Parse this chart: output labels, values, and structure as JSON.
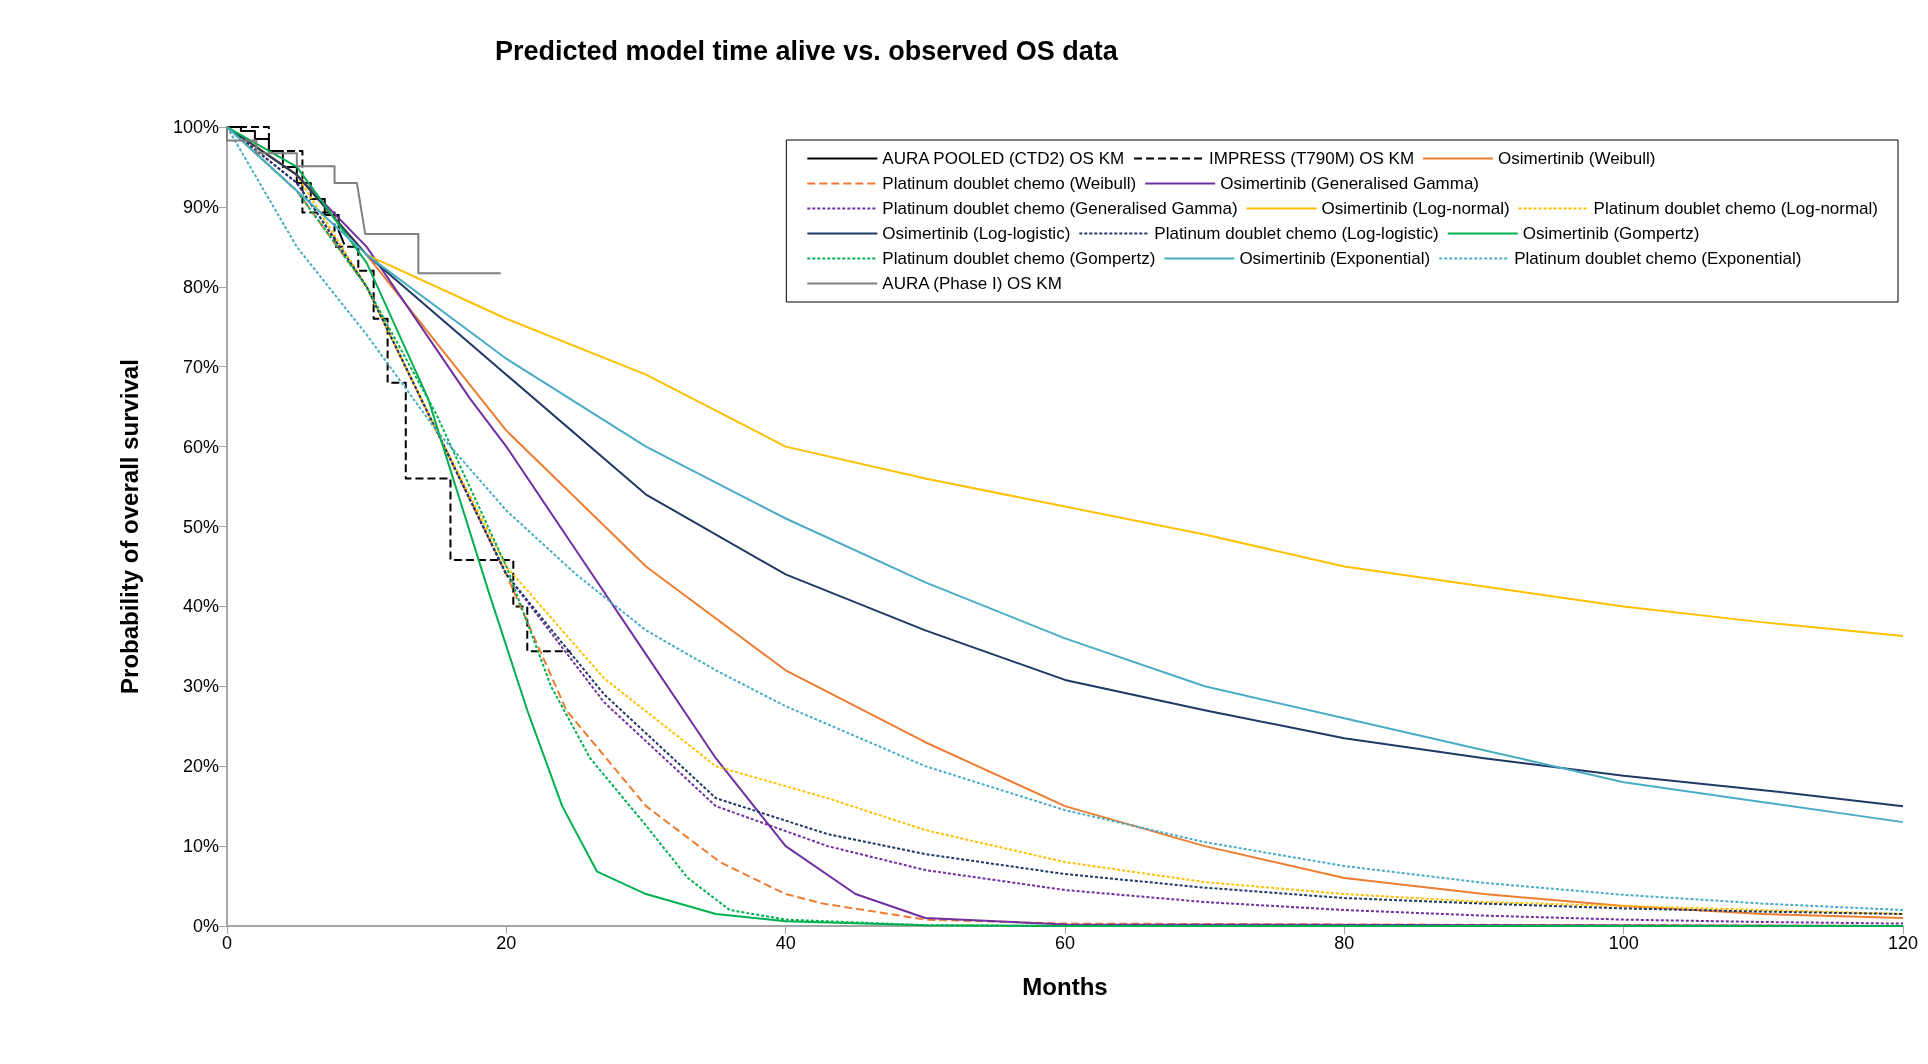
{
  "chart_data": {
    "type": "line",
    "title": "Predicted model time alive vs. observed OS data",
    "xlabel": "Months",
    "ylabel": "Probability of overall survival",
    "xlim": [
      0,
      120
    ],
    "xticks": [
      0,
      20,
      40,
      60,
      80,
      100,
      120
    ],
    "ylim": [
      0,
      100
    ],
    "yticks": [
      {
        "value": 0,
        "label": "0%"
      },
      {
        "value": 10,
        "label": "10%"
      },
      {
        "value": 20,
        "label": "20%"
      },
      {
        "value": 30,
        "label": "30%"
      },
      {
        "value": 40,
        "label": "40%"
      },
      {
        "value": 50,
        "label": "50%"
      },
      {
        "value": 60,
        "label": "60%"
      },
      {
        "value": 70,
        "label": "70%"
      },
      {
        "value": 80,
        "label": "80%"
      },
      {
        "value": 90,
        "label": "90%"
      },
      {
        "value": 100,
        "label": "100%"
      }
    ],
    "grid": false,
    "legend": "top right",
    "marker": "none",
    "series": [
      {
        "name": "AURA POOLED (CTD2) OS KM",
        "color": "#000000",
        "line_style": "solid",
        "x": [
          0,
          1,
          1,
          2,
          2,
          3,
          3,
          4,
          4,
          5,
          5,
          6,
          6,
          7,
          7,
          8,
          8,
          8.4
        ],
        "values": [
          100,
          100,
          99.5,
          99.5,
          98.5,
          98.5,
          97,
          97,
          95,
          95,
          93,
          93,
          91,
          91,
          89,
          89,
          87,
          85.3
        ]
      },
      {
        "name": "IMPRESS (T790M) OS KM",
        "color": "#000000",
        "line_style": "dashed",
        "x": [
          0,
          3,
          3,
          5.4,
          5.4,
          7.7,
          7.7,
          9.4,
          9.4,
          10.5,
          10.5,
          11.5,
          11.5,
          12.8,
          12.8,
          16,
          16,
          20.5,
          20.5,
          21.5,
          21.5,
          24.6
        ],
        "values": [
          100,
          100,
          97,
          97,
          89.3,
          89.3,
          85,
          85,
          82,
          82,
          76,
          76,
          68,
          68,
          56,
          56,
          45.8,
          45.8,
          40,
          40,
          34.4,
          34.4
        ]
      },
      {
        "name": "Osimertinib (Weibull)",
        "color": "#ed7d31",
        "line_style": "solid",
        "x": [
          0,
          5,
          10,
          20,
          30,
          40,
          50,
          60,
          70,
          80,
          90,
          100,
          110,
          120
        ],
        "values": [
          100,
          94,
          84,
          62,
          45,
          32,
          23,
          15,
          10,
          6,
          4,
          2.5,
          1.5,
          1
        ]
      },
      {
        "name": "Platinum doublet chemo (Weibull)",
        "color": "#ed7d31",
        "line_style": "dashed",
        "x": [
          0,
          5,
          10,
          15,
          20,
          24.3,
          30,
          35.3,
          40,
          42.7,
          50,
          60,
          120
        ],
        "values": [
          100,
          92,
          80,
          62,
          44,
          27,
          15,
          8,
          4,
          2.8,
          0.8,
          0.3,
          0
        ]
      },
      {
        "name": "Osimertinib (Generalised Gamma)",
        "color": "#7030a0",
        "line_style": "solid",
        "x": [
          0,
          5,
          10,
          17.4,
          20,
          25,
          30,
          35,
          40,
          45,
          50,
          60,
          120
        ],
        "values": [
          100,
          94,
          85,
          66,
          60,
          47,
          34,
          21,
          10,
          4,
          1,
          0.2,
          0
        ]
      },
      {
        "name": "Platinum doublet chemo (Generalised Gamma)",
        "color": "#7030a0",
        "line_style": "dotted",
        "x": [
          0,
          5,
          10,
          15,
          20,
          27,
          35,
          43,
          50,
          60,
          70,
          80,
          90,
          100,
          110,
          120
        ],
        "values": [
          100,
          93,
          80,
          62,
          44,
          28,
          15,
          10,
          7,
          4.5,
          3,
          2,
          1.3,
          0.8,
          0.5,
          0.3
        ]
      },
      {
        "name": "Osimertinib (Log-normal)",
        "color": "#ffc000",
        "line_style": "solid",
        "x": [
          0,
          5,
          10,
          20,
          30,
          40,
          50,
          60,
          70,
          80,
          90,
          100,
          110,
          120
        ],
        "values": [
          100,
          94,
          84,
          76,
          69,
          60,
          56,
          52.5,
          49,
          45,
          42.5,
          40,
          38,
          36.3
        ]
      },
      {
        "name": "Platinum doublet chemo (Log-normal)",
        "color": "#ffc000",
        "line_style": "dotted",
        "x": [
          0,
          5,
          10,
          15,
          20,
          27,
          35,
          43,
          50,
          60,
          70,
          80,
          90,
          100,
          110,
          120
        ],
        "values": [
          100,
          94,
          80,
          62,
          45,
          31,
          20,
          16,
          12,
          8,
          5.5,
          4,
          3,
          2.5,
          2,
          1.5
        ]
      },
      {
        "name": "Osimertinib (Log-logistic)",
        "color": "#203864",
        "line_style": "solid",
        "x": [
          0,
          5,
          10,
          20,
          30,
          40,
          50,
          60,
          70,
          80,
          90,
          100,
          110,
          120
        ],
        "values": [
          100,
          94,
          84,
          69,
          54,
          44,
          37,
          30.8,
          27,
          23.5,
          21,
          18.8,
          17,
          15
        ]
      },
      {
        "name": "Platinum doublet chemo (Log-logistic)",
        "color": "#203864",
        "line_style": "dotted",
        "x": [
          0,
          5,
          10,
          15,
          20,
          27,
          35,
          43,
          50,
          60,
          70,
          80,
          90,
          100,
          110,
          120
        ],
        "values": [
          100,
          93,
          80,
          62,
          44,
          29,
          16,
          11.5,
          9,
          6.5,
          4.8,
          3.5,
          2.8,
          2.2,
          1.8,
          1.5
        ]
      },
      {
        "name": "Osimertinib (Gompertz)",
        "color": "#00b050",
        "line_style": "solid",
        "x": [
          0,
          5,
          10,
          14.4,
          18.7,
          21.5,
          24,
          26.5,
          30,
          35,
          40,
          50,
          60,
          120
        ],
        "values": [
          100,
          95,
          83,
          66,
          42,
          27,
          15,
          6.8,
          4,
          1.5,
          0.6,
          0.1,
          0,
          0
        ]
      },
      {
        "name": "Platinum doublet chemo (Gompertz)",
        "color": "#00b050",
        "line_style": "dotted",
        "x": [
          0,
          5,
          10,
          15,
          20,
          23.2,
          26,
          29.8,
          33,
          36,
          40,
          50,
          60,
          120
        ],
        "values": [
          100,
          92,
          80,
          64,
          45,
          30,
          21,
          13,
          6,
          2,
          0.8,
          0.1,
          0,
          0
        ]
      },
      {
        "name": "Osimertinib (Exponential)",
        "color": "#4bacc6",
        "line_style": "solid",
        "x": [
          0,
          10,
          20,
          30,
          40,
          50,
          60,
          70,
          80,
          90,
          100,
          110,
          120
        ],
        "values": [
          100,
          84,
          71,
          60,
          51,
          43,
          36,
          30,
          26,
          22,
          18,
          15.5,
          13
        ]
      },
      {
        "name": "Platinum doublet chemo (Exponential)",
        "color": "#4bacc6",
        "line_style": "dotted",
        "x": [
          0,
          5,
          10,
          15,
          20,
          25,
          30,
          35,
          40,
          50,
          60,
          70,
          80,
          90,
          100,
          110,
          120
        ],
        "values": [
          100,
          85,
          74,
          62,
          52,
          44,
          37,
          32,
          27.5,
          20,
          14.5,
          10.5,
          7.5,
          5.4,
          3.9,
          2.8,
          2
        ]
      },
      {
        "name": "AURA (Phase I) OS KM",
        "color": "#808080",
        "line_style": "solid",
        "x": [
          0,
          0,
          2.1,
          2.1,
          5,
          5,
          7.7,
          7.7,
          9.3,
          9.9,
          13.7,
          13.7,
          19.6
        ],
        "values": [
          100,
          98.3,
          98.3,
          96.7,
          96.7,
          95.1,
          95.1,
          93,
          93,
          86.6,
          86.6,
          81.7,
          81.7
        ]
      }
    ]
  }
}
